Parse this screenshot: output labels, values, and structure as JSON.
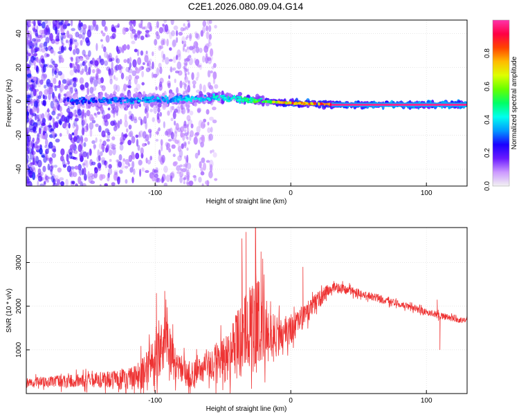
{
  "page": {
    "title": "C2E1.2026.080.09.04.G14"
  },
  "chart_data": [
    {
      "type": "heatmap",
      "title": "C2E1.2026.080.09.04.G14",
      "xlabel": "Height of straight line (km)",
      "ylabel": "Frequency (Hz)",
      "xlim": [
        -195,
        130
      ],
      "ylim": [
        -50,
        48
      ],
      "xticks": [
        -100,
        0,
        100
      ],
      "yticks": [
        -40,
        -20,
        0,
        20,
        40
      ],
      "colorbar": {
        "label": "Normalized spectral amplitude",
        "range": [
          0,
          1
        ],
        "ticks": [
          "0.0",
          "0.2",
          "0.4",
          "0.6",
          "0.8"
        ],
        "colors": [
          "#f2f2f2",
          "#cc99ff",
          "#6a1aff",
          "#1a00ff",
          "#0099ff",
          "#00ffee",
          "#00ff66",
          "#66ff00",
          "#ddff00",
          "#ffbb00",
          "#ff4400",
          "#ff0044",
          "#ff33aa"
        ]
      },
      "ridge": [
        {
          "x": -160,
          "freq": 0,
          "amp": 0.3
        },
        {
          "x": -100,
          "freq": 1,
          "amp": 0.4
        },
        {
          "x": -50,
          "freq": 2,
          "amp": 0.45
        },
        {
          "x": -20,
          "freq": 0,
          "amp": 0.6
        },
        {
          "x": 0,
          "freq": -1,
          "amp": 0.85
        },
        {
          "x": 40,
          "freq": -2,
          "amp": 0.95
        },
        {
          "x": 130,
          "freq": -2,
          "amp": 1.0
        }
      ],
      "grid": true
    },
    {
      "type": "line",
      "xlabel": "Height of straight line (km)",
      "ylabel": "SNR (10 * v/v)",
      "xlim": [
        -195,
        130
      ],
      "ylim": [
        0,
        3800
      ],
      "xticks": [
        -100,
        0,
        100
      ],
      "yticks": [
        1000,
        2000,
        3000
      ],
      "color": "#ee3333",
      "envelope": [
        {
          "x": -195,
          "center": 250,
          "spread": 150
        },
        {
          "x": -150,
          "center": 300,
          "spread": 200
        },
        {
          "x": -115,
          "center": 350,
          "spread": 350
        },
        {
          "x": -100,
          "center": 700,
          "spread": 700
        },
        {
          "x": -92,
          "center": 1300,
          "spread": 700
        },
        {
          "x": -85,
          "center": 700,
          "spread": 450
        },
        {
          "x": -75,
          "center": 400,
          "spread": 350
        },
        {
          "x": -60,
          "center": 600,
          "spread": 500
        },
        {
          "x": -45,
          "center": 900,
          "spread": 800
        },
        {
          "x": -35,
          "center": 1300,
          "spread": 1200
        },
        {
          "x": -25,
          "center": 1800,
          "spread": 1400
        },
        {
          "x": -15,
          "center": 1300,
          "spread": 700
        },
        {
          "x": -5,
          "center": 1300,
          "spread": 500
        },
        {
          "x": 10,
          "center": 1800,
          "spread": 350
        },
        {
          "x": 30,
          "center": 2450,
          "spread": 150
        },
        {
          "x": 50,
          "center": 2300,
          "spread": 120
        },
        {
          "x": 80,
          "center": 2050,
          "spread": 100
        },
        {
          "x": 108,
          "center": 1800,
          "spread": 100
        },
        {
          "x": 130,
          "center": 1650,
          "spread": 80
        }
      ],
      "peaks": [
        {
          "x": -99,
          "y": 2300
        },
        {
          "x": -93,
          "y": 2350
        },
        {
          "x": -36,
          "y": 3550
        },
        {
          "x": -33,
          "y": 3700
        },
        {
          "x": -26,
          "y": 3800
        },
        {
          "x": -22,
          "y": 3250
        },
        {
          "x": 9,
          "y": 2900
        },
        {
          "x": 108,
          "y": 2150
        },
        {
          "x": 110,
          "y": 1000
        }
      ],
      "grid": true
    }
  ]
}
